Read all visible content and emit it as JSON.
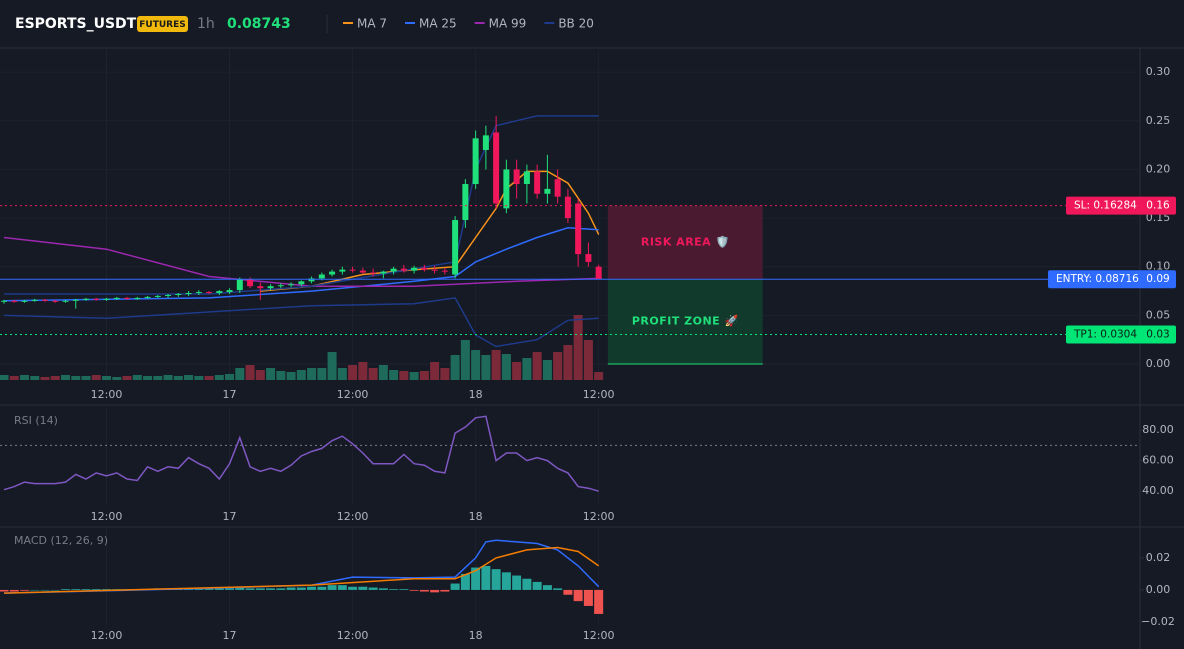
{
  "header": {
    "symbol": "ESPORTS_USDT",
    "badge": "FUTURES",
    "interval": "1h",
    "price": "0.08743"
  },
  "chart_data": [
    {
      "type": "candlestick",
      "xlim": [
        -0.39,
        110.8
      ],
      "xticks": [
        {
          "value": 10,
          "label": "12:00"
        },
        {
          "value": 22,
          "label": "17"
        },
        {
          "value": 34,
          "label": "12:00"
        },
        {
          "value": 46,
          "label": "18"
        },
        {
          "value": 58,
          "label": "12:00"
        }
      ],
      "ylim": [
        -0.0164,
        0.3248
      ],
      "yticks": [
        {
          "value": 0,
          "label": "0.00"
        },
        {
          "value": 0.05,
          "label": "0.05"
        },
        {
          "value": 0.1,
          "label": "0.10"
        },
        {
          "value": 0.15,
          "label": "0.15"
        },
        {
          "value": 0.2,
          "label": "0.20"
        },
        {
          "value": 0.25,
          "label": "0.25"
        },
        {
          "value": 0.3,
          "label": "0.30"
        }
      ],
      "grid": true,
      "up_color": "#1fe07a",
      "down_color": "#f0185a",
      "volume_up_color": "#1e6b5c",
      "volume_down_color": "#7c2a3a",
      "open": [
        0.064,
        0.065,
        0.064,
        0.065,
        0.066,
        0.065,
        0.064,
        0.065,
        0.066,
        0.067,
        0.066,
        0.067,
        0.068,
        0.067,
        0.068,
        0.069,
        0.07,
        0.071,
        0.072,
        0.073,
        0.074,
        0.073,
        0.074,
        0.076,
        0.087,
        0.08,
        0.078,
        0.08,
        0.081,
        0.082,
        0.085,
        0.088,
        0.092,
        0.095,
        0.097,
        0.096,
        0.094,
        0.093,
        0.095,
        0.098,
        0.096,
        0.099,
        0.097,
        0.096,
        0.092,
        0.148,
        0.185,
        0.22,
        0.238,
        0.16,
        0.2,
        0.185,
        0.198,
        0.175,
        0.19,
        0.172,
        0.165,
        0.113,
        0.1
      ],
      "high": [
        0.066,
        0.066,
        0.066,
        0.067,
        0.067,
        0.066,
        0.066,
        0.067,
        0.068,
        0.068,
        0.068,
        0.069,
        0.069,
        0.069,
        0.07,
        0.071,
        0.072,
        0.073,
        0.075,
        0.076,
        0.075,
        0.076,
        0.078,
        0.089,
        0.089,
        0.084,
        0.082,
        0.083,
        0.084,
        0.086,
        0.09,
        0.094,
        0.097,
        0.1,
        0.1,
        0.099,
        0.098,
        0.096,
        0.1,
        0.102,
        0.101,
        0.102,
        0.101,
        0.099,
        0.152,
        0.19,
        0.24,
        0.245,
        0.255,
        0.21,
        0.21,
        0.205,
        0.205,
        0.215,
        0.2,
        0.18,
        0.17,
        0.125,
        0.102
      ],
      "low": [
        0.062,
        0.063,
        0.063,
        0.064,
        0.064,
        0.063,
        0.063,
        0.057,
        0.065,
        0.065,
        0.065,
        0.066,
        0.066,
        0.066,
        0.067,
        0.068,
        0.068,
        0.069,
        0.07,
        0.071,
        0.072,
        0.071,
        0.072,
        0.073,
        0.078,
        0.066,
        0.076,
        0.078,
        0.079,
        0.08,
        0.083,
        0.086,
        0.09,
        0.092,
        0.094,
        0.093,
        0.09,
        0.088,
        0.092,
        0.094,
        0.093,
        0.095,
        0.093,
        0.092,
        0.088,
        0.14,
        0.18,
        0.2,
        0.16,
        0.155,
        0.17,
        0.165,
        0.17,
        0.165,
        0.165,
        0.145,
        0.1,
        0.1,
        0.087
      ],
      "close": [
        0.065,
        0.064,
        0.065,
        0.066,
        0.065,
        0.064,
        0.065,
        0.066,
        0.067,
        0.066,
        0.067,
        0.068,
        0.067,
        0.068,
        0.069,
        0.07,
        0.071,
        0.072,
        0.073,
        0.074,
        0.073,
        0.075,
        0.076,
        0.087,
        0.08,
        0.078,
        0.08,
        0.081,
        0.082,
        0.085,
        0.088,
        0.092,
        0.095,
        0.097,
        0.096,
        0.094,
        0.093,
        0.095,
        0.098,
        0.096,
        0.099,
        0.097,
        0.096,
        0.095,
        0.148,
        0.185,
        0.232,
        0.235,
        0.165,
        0.2,
        0.185,
        0.198,
        0.175,
        0.18,
        0.172,
        0.15,
        0.113,
        0.105,
        0.087
      ],
      "volume": [
        5,
        4,
        5,
        4,
        3,
        4,
        5,
        4,
        4,
        5,
        4,
        3,
        4,
        5,
        4,
        4,
        5,
        4,
        5,
        4,
        4,
        5,
        6,
        12,
        15,
        10,
        12,
        9,
        8,
        10,
        12,
        12,
        28,
        12,
        15,
        18,
        12,
        15,
        10,
        9,
        8,
        9,
        18,
        12,
        25,
        40,
        30,
        25,
        30,
        26,
        18,
        22,
        28,
        20,
        28,
        35,
        65,
        40,
        8
      ],
      "series": [
        {
          "name": "MA 7",
          "color": "#f7931a",
          "x": [
            25,
            30,
            35,
            40,
            44,
            46,
            48,
            49,
            51,
            53,
            55,
            57,
            58
          ],
          "values": [
            0.075,
            0.08,
            0.092,
            0.097,
            0.1,
            0.13,
            0.16,
            0.18,
            0.198,
            0.198,
            0.186,
            0.155,
            0.133
          ]
        },
        {
          "name": "MA 25",
          "color": "#2f6bff",
          "x": [
            0,
            20,
            30,
            40,
            44,
            46,
            49,
            52,
            55,
            58
          ],
          "values": [
            0.065,
            0.068,
            0.075,
            0.085,
            0.09,
            0.105,
            0.118,
            0.13,
            0.14,
            0.138
          ]
        },
        {
          "name": "MA 99",
          "color": "#9c27b0",
          "x": [
            0,
            10,
            20,
            30,
            40,
            50,
            58
          ],
          "values": [
            0.13,
            0.118,
            0.09,
            0.08,
            0.08,
            0.085,
            0.088
          ]
        },
        {
          "name": "BB 20",
          "color": "#1e3a8a",
          "x": [
            0,
            20,
            30,
            40,
            44,
            46,
            48,
            52,
            56,
            58
          ],
          "values": [
            0.072,
            0.072,
            0.08,
            0.098,
            0.105,
            0.2,
            0.245,
            0.255,
            0.255,
            0.255
          ]
        }
      ],
      "bb_lower": {
        "x": [
          0,
          10,
          30,
          40,
          44,
          46,
          48,
          52,
          55,
          58
        ],
        "values": [
          0.05,
          0.047,
          0.06,
          0.062,
          0.068,
          0.03,
          0.018,
          0.025,
          0.045,
          0.047
        ]
      },
      "levels": [
        {
          "text": "SL: 0.16284",
          "value": 0.16284,
          "axis_label": "0.16",
          "color": "#f0185a",
          "dash": true
        },
        {
          "text": "ENTRY: 0.08716",
          "value": 0.08716,
          "axis_label": "0.09",
          "color": "#2f6bff",
          "dash": false
        },
        {
          "text": "TP1: 0.0304",
          "value": 0.0304,
          "axis_label": "0.03",
          "color": "#00e676",
          "dash": true
        }
      ],
      "zones": [
        {
          "text": "RISK AREA 🛡️",
          "x": [
            58.9,
            74
          ],
          "y": [
            0.08716,
            0.16284
          ],
          "fill": "#4a1a31",
          "color": "#f0185a"
        },
        {
          "text": "PROFIT ZONE 🚀",
          "x": [
            58.9,
            74
          ],
          "y": [
            0,
            0.08716
          ],
          "fill": "#123a2c",
          "color": "#1fe07a"
        }
      ]
    },
    {
      "type": "line",
      "title": "RSI (14)",
      "xlim": [
        -0.39,
        110.8
      ],
      "ylim": [
        31,
        94.4
      ],
      "yticks": [
        {
          "value": 40,
          "label": "40.00"
        },
        {
          "value": 60,
          "label": "60.00"
        },
        {
          "value": 80,
          "label": "80.00"
        }
      ],
      "hline": 70,
      "series": [
        {
          "color": "#7e57c2",
          "values": [
            41,
            43,
            46,
            45,
            45,
            45,
            46,
            51,
            48,
            52,
            50,
            52,
            48,
            47,
            56,
            53,
            56,
            55,
            62,
            58,
            55,
            48,
            58,
            75,
            56,
            53,
            55,
            53,
            57,
            63,
            66,
            68,
            73,
            76,
            71,
            65,
            58,
            58,
            58,
            64,
            58,
            57,
            53,
            52,
            78,
            82,
            88,
            89,
            60,
            65,
            65,
            60,
            62,
            60,
            55,
            52,
            43,
            42,
            40
          ]
        }
      ]
    },
    {
      "type": "bar",
      "title": "MACD (12, 26, 9)",
      "xlim": [
        -0.39,
        110.8
      ],
      "ylim": [
        -0.0219,
        0.0387
      ],
      "yticks": [
        {
          "value": -0.02,
          "label": "−0.02"
        },
        {
          "value": 0,
          "label": "0.00"
        },
        {
          "value": 0.02,
          "label": "0.02"
        }
      ],
      "up_color": "#26a69a",
      "down_color": "#ef5350",
      "values": [
        -0.001,
        -0.001,
        -0.0005,
        0,
        0,
        0,
        0.0005,
        0.0005,
        0.0005,
        0.0005,
        0.0005,
        0.0005,
        0.0005,
        0.0005,
        0.0005,
        0.001,
        0.001,
        0.001,
        0.001,
        0.001,
        0.001,
        0.001,
        0.001,
        0.002,
        0.001,
        0.001,
        0.001,
        0.001,
        0.0015,
        0.0015,
        0.002,
        0.002,
        0.003,
        0.003,
        0.002,
        0.002,
        0.0015,
        0.001,
        0.0005,
        0.0005,
        -0.0005,
        -0.001,
        -0.0015,
        -0.001,
        0.004,
        0.01,
        0.014,
        0.015,
        0.013,
        0.011,
        0.009,
        0.007,
        0.005,
        0.003,
        0.001,
        -0.003,
        -0.007,
        -0.01,
        -0.015
      ],
      "series": [
        {
          "color": "#2f6bff",
          "x": [
            0,
            20,
            30,
            34,
            40,
            44,
            46,
            47,
            48,
            50,
            52,
            54,
            56,
            58
          ],
          "values": [
            -0.002,
            0.001,
            0.003,
            0.008,
            0.0075,
            0.008,
            0.02,
            0.03,
            0.031,
            0.03,
            0.029,
            0.025,
            0.015,
            0.002
          ]
        },
        {
          "color": "#f57c00",
          "x": [
            0,
            30,
            40,
            44,
            46,
            48,
            51,
            54,
            56,
            58
          ],
          "values": [
            -0.002,
            0.003,
            0.007,
            0.007,
            0.012,
            0.02,
            0.025,
            0.0265,
            0.024,
            0.015
          ]
        }
      ]
    }
  ]
}
